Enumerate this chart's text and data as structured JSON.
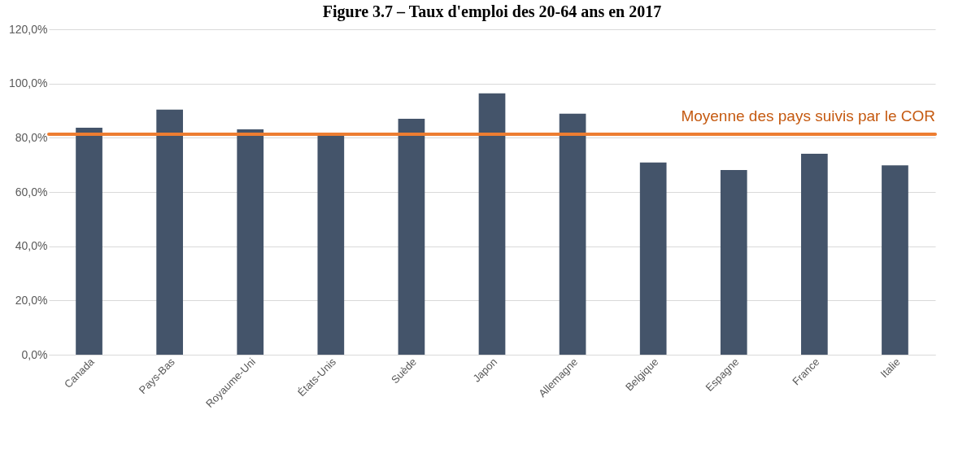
{
  "chart_data": {
    "type": "bar",
    "title": "Figure 3.7 – Taux d'emploi des 20-64 ans en 2017",
    "categories": [
      "Canada",
      "Pays-Bas",
      "Royaume-Uni",
      "États-Unis",
      "Suède",
      "Japon",
      "Allemagne",
      "Belgique",
      "Espagne",
      "France",
      "Italie"
    ],
    "values": [
      83.7,
      90.4,
      83.1,
      80.7,
      87.0,
      96.4,
      88.9,
      70.9,
      68.1,
      74.1,
      69.8
    ],
    "color": "#44546a",
    "ylim": [
      0,
      120
    ],
    "yticks": [
      {
        "value": 0,
        "label": "0,0%"
      },
      {
        "value": 20,
        "label": "20,0%"
      },
      {
        "value": 40,
        "label": "40,0%"
      },
      {
        "value": 60,
        "label": "60,0%"
      },
      {
        "value": 80,
        "label": "80,0%"
      },
      {
        "value": 100,
        "label": "100,0%"
      },
      {
        "value": 120,
        "label": "120,0%"
      }
    ],
    "grid": "y",
    "ref_lines": [
      {
        "axis": "y",
        "value": 81.3,
        "label": "Moyenne des pays suivis par le COR",
        "color": "#ed7d31"
      }
    ]
  }
}
